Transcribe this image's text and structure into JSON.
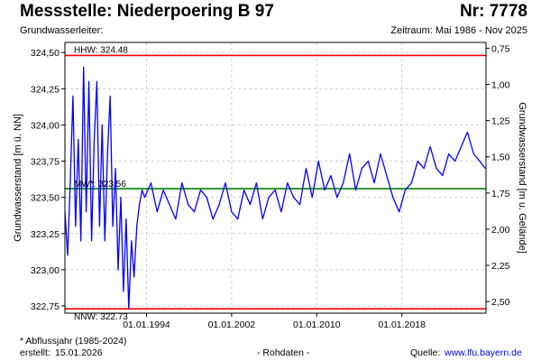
{
  "header": {
    "title": "Messstelle: Niederpoering B 97",
    "station_no": "Nr: 7778",
    "aquifer_label": "Grundwasserleiter:",
    "period": "Zeitraum: Mai 1986 - Nov 2025"
  },
  "footer": {
    "note": "* Abflussjahr (1985-2024)",
    "created_label": "erstellt:",
    "created_date": "15.01.2026",
    "raw": "- Rohdaten -",
    "source_label": "Quelle:",
    "source_link": "www.lfu.bayern.de"
  },
  "chart_data": {
    "type": "line",
    "title": "Messstelle: Niederpoering B 97",
    "ylabel": "Grundwasserstand [m ü. NN]",
    "ylabel_right": "Grundwasserstand [m u. Gelände]",
    "ylim": [
      322.7,
      324.57
    ],
    "ylim_right": [
      0.71,
      2.58
    ],
    "xlim": [
      "1986-05-01",
      "2025-11-30"
    ],
    "yticks": [
      "324,50",
      "324,25",
      "324,00",
      "323,75",
      "323,50",
      "323,25",
      "323,00",
      "322,75"
    ],
    "ytick_values": [
      324.5,
      324.25,
      324.0,
      323.75,
      323.5,
      323.25,
      323.0,
      322.75
    ],
    "yticks_right": [
      "0,75",
      "1,00",
      "1,25",
      "1,50",
      "1,75",
      "2,00",
      "2,25",
      "2,50"
    ],
    "ytick_right_values": [
      0.75,
      1.0,
      1.25,
      1.5,
      1.75,
      2.0,
      2.25,
      2.5
    ],
    "xticks": [
      "01.01.1994",
      "01.01.2002",
      "01.01.2010",
      "01.01.2018"
    ],
    "xtick_values": [
      "1994-01-01",
      "2002-01-01",
      "2010-01-01",
      "2018-01-01"
    ],
    "grid": true,
    "reference_lines": [
      {
        "name": "HHW",
        "label": "HHW: 324.48",
        "value": 324.48,
        "color": "#ff0000"
      },
      {
        "name": "MW",
        "label": "MW*: 323.56",
        "value": 323.56,
        "color": "#008000"
      },
      {
        "name": "NNW",
        "label": "NNW: 322.73",
        "value": 322.73,
        "color": "#ff0000"
      }
    ],
    "series": [
      {
        "color": "#0000ff",
        "x": [
          "1986-05-01",
          "1986-08-01",
          "1986-11-01",
          "1987-02-01",
          "1987-05-01",
          "1987-08-01",
          "1987-11-01",
          "1988-02-01",
          "1988-05-01",
          "1988-08-01",
          "1988-11-01",
          "1989-02-01",
          "1989-05-01",
          "1989-08-01",
          "1989-11-01",
          "1990-02-01",
          "1990-05-01",
          "1990-08-01",
          "1990-11-01",
          "1991-02-01",
          "1991-05-01",
          "1991-08-01",
          "1991-11-01",
          "1992-02-01",
          "1992-05-01",
          "1992-08-01",
          "1992-11-01",
          "1993-02-01",
          "1993-05-01",
          "1993-08-01",
          "1993-11-01",
          "1994-06-01",
          "1995-01-01",
          "1995-08-01",
          "1996-03-01",
          "1996-10-01",
          "1997-05-01",
          "1997-12-01",
          "1998-07-01",
          "1999-02-01",
          "1999-09-01",
          "2000-04-01",
          "2000-11-01",
          "2001-06-01",
          "2002-01-01",
          "2002-08-01",
          "2003-03-01",
          "2003-10-01",
          "2004-05-01",
          "2004-12-01",
          "2005-07-01",
          "2006-02-01",
          "2006-09-01",
          "2007-04-01",
          "2007-11-01",
          "2008-06-01",
          "2009-01-01",
          "2009-08-01",
          "2010-03-01",
          "2010-10-01",
          "2011-05-01",
          "2011-12-01",
          "2012-07-01",
          "2013-02-01",
          "2013-09-01",
          "2014-04-01",
          "2014-11-01",
          "2015-06-01",
          "2016-01-01",
          "2016-08-01",
          "2017-03-01",
          "2017-10-01",
          "2018-05-01",
          "2018-12-01",
          "2019-07-01",
          "2020-02-01",
          "2020-09-01",
          "2021-04-01",
          "2021-11-01",
          "2022-06-01",
          "2023-01-01",
          "2023-08-01",
          "2024-03-01",
          "2024-10-01",
          "2025-05-01",
          "2025-11-01"
        ],
        "y": [
          323.4,
          323.1,
          323.6,
          324.2,
          323.3,
          323.9,
          323.2,
          324.4,
          323.4,
          324.3,
          323.2,
          323.9,
          324.3,
          323.3,
          324.0,
          323.2,
          323.8,
          324.2,
          323.3,
          323.7,
          323.0,
          323.5,
          322.85,
          323.35,
          322.73,
          323.2,
          322.95,
          323.3,
          323.45,
          323.55,
          323.5,
          323.6,
          323.4,
          323.55,
          323.45,
          323.35,
          323.6,
          323.45,
          323.4,
          323.55,
          323.5,
          323.35,
          323.45,
          323.6,
          323.4,
          323.35,
          323.55,
          323.45,
          323.6,
          323.35,
          323.5,
          323.55,
          323.4,
          323.6,
          323.5,
          323.45,
          323.7,
          323.5,
          323.75,
          323.55,
          323.65,
          323.5,
          323.6,
          323.8,
          323.55,
          323.7,
          323.75,
          323.6,
          323.8,
          323.65,
          323.5,
          323.4,
          323.55,
          323.6,
          323.75,
          323.7,
          323.85,
          323.7,
          323.65,
          323.8,
          323.75,
          323.85,
          323.95,
          323.8,
          323.75,
          323.7
        ]
      }
    ]
  }
}
